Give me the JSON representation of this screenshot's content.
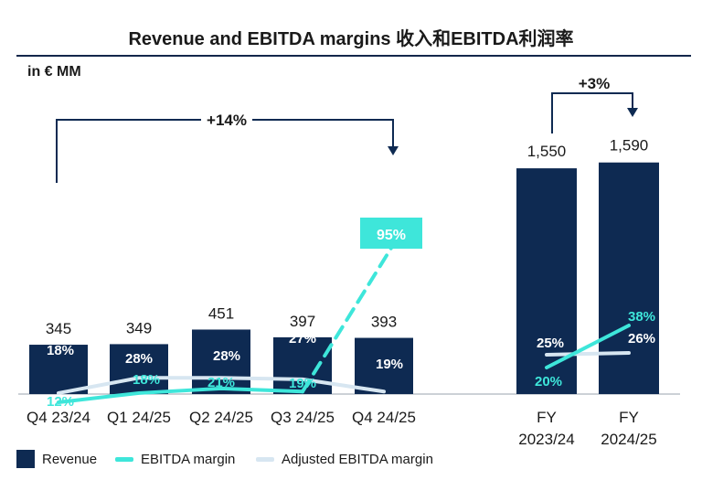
{
  "title": "Revenue and EBITDA margins 收入和EBITDA利润率",
  "unit": "in € MM",
  "colors": {
    "revenue": "#0e2a52",
    "ebitda": "#3ee6da",
    "adjusted": "#d7e6f1",
    "text": "#1a1a1a",
    "rule": "#13264a"
  },
  "chart_data": [
    {
      "type": "bar",
      "name": "quarterly",
      "categories": [
        "Q4 23/24",
        "Q1 24/25",
        "Q2 24/25",
        "Q3 24/25",
        "Q4 24/25"
      ],
      "series": [
        {
          "name": "Revenue",
          "kind": "bar",
          "unit": "€ MM",
          "values": [
            345,
            349,
            451,
            397,
            393
          ],
          "labels": [
            "345",
            "349",
            "451",
            "397",
            "393"
          ]
        },
        {
          "name": "EBITDA margin",
          "kind": "line",
          "unit": "%",
          "values": [
            12,
            18,
            21,
            19,
            95
          ],
          "labels": [
            "12%",
            "18%",
            "21%",
            "19%",
            "95%"
          ]
        },
        {
          "name": "Adjusted EBITDA margin",
          "kind": "line",
          "unit": "%",
          "values": [
            18,
            28,
            28,
            27,
            19
          ],
          "labels": [
            "18%",
            "28%",
            "28%",
            "27%",
            "19%"
          ]
        }
      ],
      "growth": {
        "from": "Q4 23/24",
        "to": "Q4 24/25",
        "label": "+14%"
      }
    },
    {
      "type": "bar",
      "name": "annual",
      "categories": [
        "FY 2023/24",
        "FY 2024/25"
      ],
      "category_lines": [
        [
          "FY",
          "2023/24"
        ],
        [
          "FY",
          "2024/25"
        ]
      ],
      "series": [
        {
          "name": "Revenue",
          "kind": "bar",
          "unit": "€ MM",
          "values": [
            1550,
            1590
          ],
          "labels": [
            "1,550",
            "1,590"
          ]
        },
        {
          "name": "EBITDA margin",
          "kind": "line",
          "unit": "%",
          "values": [
            20,
            38
          ],
          "labels": [
            "20%",
            "38%"
          ]
        },
        {
          "name": "Adjusted EBITDA margin",
          "kind": "line",
          "unit": "%",
          "values": [
            25,
            26
          ],
          "labels": [
            "25%",
            "26%"
          ]
        }
      ],
      "growth": {
        "from": "FY 2023/24",
        "to": "FY 2024/25",
        "label": "+3%"
      }
    }
  ],
  "legend": [
    {
      "label": "Revenue",
      "kind": "box",
      "color": "#0e2a52"
    },
    {
      "label": "EBITDA margin",
      "kind": "line",
      "color": "#3ee6da"
    },
    {
      "label": "Adjusted EBITDA margin",
      "kind": "line",
      "color": "#d7e6f1"
    }
  ]
}
